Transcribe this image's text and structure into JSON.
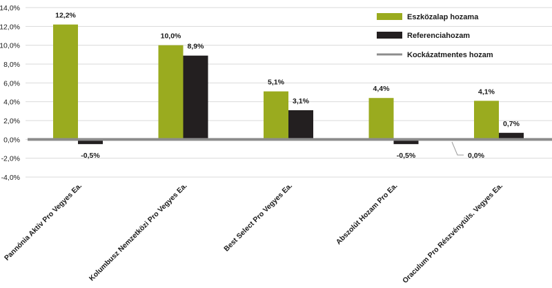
{
  "chart_data": {
    "type": "bar",
    "title": "",
    "xlabel": "",
    "ylabel": "",
    "ylim": [
      -4,
      14
    ],
    "y_ticks": [
      14,
      12,
      10,
      8,
      6,
      4,
      2,
      0,
      -2,
      -4
    ],
    "y_tick_labels": [
      "14,0%",
      "12,0%",
      "10,0%",
      "8,0%",
      "6,0%",
      "4,0%",
      "2,0%",
      "0,0%",
      "-2,0%",
      "-4,0%"
    ],
    "grid": true,
    "legend_position": "top-right",
    "categories": [
      "Pannónia Aktív Pro Vegyes Ea.",
      "Kolumbusz Nemzetközi Pro Vegyes Ea.",
      "Best Select Pro Vegyes Ea.",
      "Abszolút Hozam Pro Ea.",
      "Oraculum Pro Részvénytúls. Vegyes Ea."
    ],
    "series": [
      {
        "name": "Eszközalap hozama",
        "kind": "bar",
        "color": "#9aab1f",
        "values": [
          12.2,
          10.0,
          5.1,
          4.4,
          4.1
        ],
        "labels": [
          "12,2%",
          "10,0%",
          "5,1%",
          "4,4%",
          "4,1%"
        ]
      },
      {
        "name": "Referenciahozam",
        "kind": "bar",
        "color": "#231f20",
        "values": [
          -0.5,
          8.9,
          3.1,
          -0.5,
          0.7
        ],
        "labels": [
          "-0,5%",
          "8,9%",
          "3,1%",
          "-0,5%",
          "0,7%"
        ]
      },
      {
        "name": "Kockázatmentes hozam",
        "kind": "line",
        "color": "#8c8c8c",
        "values": [
          0.0,
          0.0,
          0.0,
          0.0,
          0.0
        ],
        "labels": [
          "0,0%"
        ]
      }
    ]
  }
}
